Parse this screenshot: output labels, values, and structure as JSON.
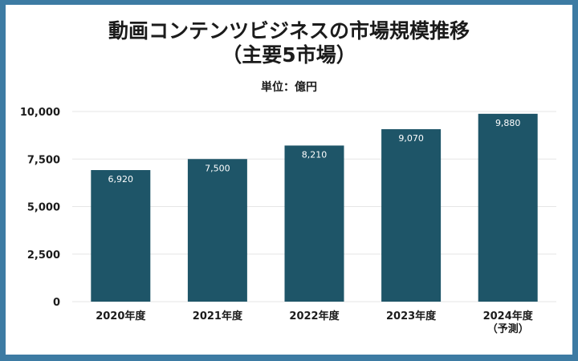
{
  "chart_data": {
    "type": "bar",
    "title_lines": [
      "動画コンテンツビジネスの市場規模推移",
      "（主要5市場）"
    ],
    "unit_label": "単位：億円",
    "categories": [
      [
        "2020年度"
      ],
      [
        "2021年度"
      ],
      [
        "2022年度"
      ],
      [
        "2023年度"
      ],
      [
        "2024年度",
        "（予測）"
      ]
    ],
    "values": [
      6920,
      7500,
      8210,
      9070,
      9880
    ],
    "value_labels": [
      "6,920",
      "7,500",
      "8,210",
      "9,070",
      "9,880"
    ],
    "y_ticks": [
      0,
      2500,
      5000,
      7500,
      10000
    ],
    "y_tick_labels": [
      "0",
      "2,500",
      "5,000",
      "7,500",
      "10,000"
    ],
    "ylim": [
      0,
      10000
    ],
    "grid": true,
    "bar_color": "#1e5568",
    "grid_color": "#e6e6e6"
  }
}
